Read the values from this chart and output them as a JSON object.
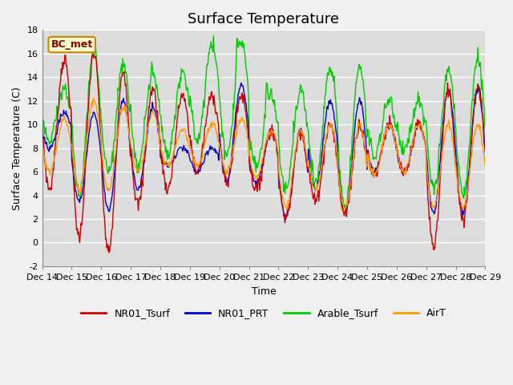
{
  "title": "Surface Temperature",
  "ylabel": "Surface Temperature (C)",
  "xlabel": "Time",
  "annotation": "BC_met",
  "ylim": [
    -2,
    18
  ],
  "background_color": "#dcdcdc",
  "fig_facecolor": "#f0f0f0",
  "series_colors": {
    "NR01_Tsurf": "#cc0000",
    "NR01_PRT": "#0000cc",
    "Arable_Tsurf": "#00cc00",
    "AirT": "#ff9900"
  },
  "xtick_labels": [
    "Dec 14",
    "Dec 15",
    "Dec 16",
    "Dec 17",
    "Dec 18",
    "Dec 19",
    "Dec 20",
    "Dec 21",
    "Dec 22",
    "Dec 23",
    "Dec 24",
    "Dec 25",
    "Dec 26",
    "Dec 27",
    "Dec 28",
    "Dec 29"
  ],
  "ytick_values": [
    -2,
    0,
    2,
    4,
    6,
    8,
    10,
    12,
    14,
    16,
    18
  ],
  "title_fontsize": 13,
  "label_fontsize": 9,
  "tick_fontsize": 8
}
